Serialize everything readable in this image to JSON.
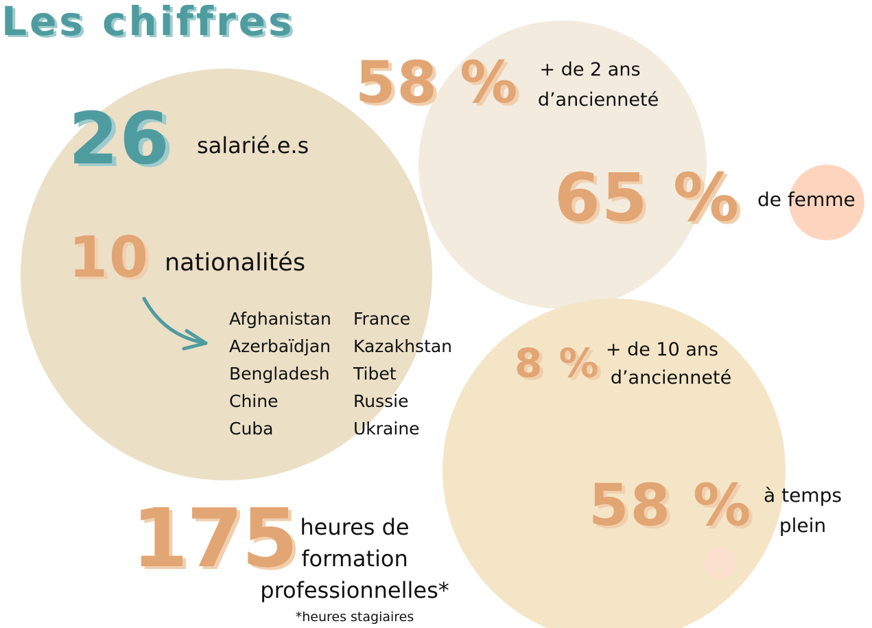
{
  "title": "Les chiffres",
  "employees": {
    "number": "26",
    "label": "salarié.e.s"
  },
  "nationalities": {
    "number": "10",
    "label": "nationalités",
    "countries": [
      [
        "Afghanistan",
        "France"
      ],
      [
        "Azerbaïdjan",
        "Kazakhstan"
      ],
      [
        "Bengladesh",
        "Tibet"
      ],
      [
        "Chine",
        "Russie"
      ],
      [
        "Cuba",
        "Ukraine"
      ]
    ]
  },
  "seniority_2": {
    "number": "58 %",
    "lines": [
      "+ de 2 ans",
      "d’ancienneté"
    ]
  },
  "women": {
    "number": "65 %",
    "label": "de femme"
  },
  "seniority_10": {
    "number": "8 %",
    "lines": [
      "+ de 10 ans",
      "d’ancienneté"
    ]
  },
  "full_time": {
    "number": "58 %",
    "lines": [
      "à temps",
      "plein"
    ]
  },
  "training": {
    "number": "175",
    "lines": [
      "heures de",
      "formation",
      "professionnelles*"
    ],
    "note": "*heures stagiaires"
  }
}
